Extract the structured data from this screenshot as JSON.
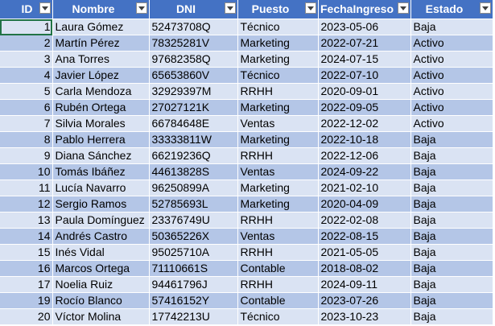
{
  "sheet": {
    "headers": [
      "ID",
      "Nombre",
      "DNI",
      "Puesto",
      "FechaIngreso",
      "Estado"
    ],
    "filter_icon": "dropdown-arrow-icon",
    "header_color": "#4472c4",
    "band_light": "#dae3f3",
    "band_dark": "#b4c6e7",
    "rows": [
      [
        "1",
        "Laura Gómez",
        "52473708Q",
        "Técnico",
        "2023-05-06",
        "Baja"
      ],
      [
        "2",
        "Martín Pérez",
        "78325281V",
        "Marketing",
        "2022-07-21",
        "Activo"
      ],
      [
        "3",
        "Ana Torres",
        "97682358Q",
        "Marketing",
        "2024-07-15",
        "Activo"
      ],
      [
        "4",
        "Javier López",
        "65653860V",
        "Técnico",
        "2022-07-10",
        "Activo"
      ],
      [
        "5",
        "Carla Mendoza",
        "32929397M",
        "RRHH",
        "2020-09-01",
        "Activo"
      ],
      [
        "6",
        "Rubén Ortega",
        "27027121K",
        "Marketing",
        "2022-09-05",
        "Activo"
      ],
      [
        "7",
        "Silvia Morales",
        "66784648E",
        "Ventas",
        "2022-12-02",
        "Activo"
      ],
      [
        "8",
        "Pablo Herrera",
        "33333811W",
        "Marketing",
        "2022-10-18",
        "Baja"
      ],
      [
        "9",
        "Diana Sánchez",
        "66219236Q",
        "RRHH",
        "2022-12-06",
        "Baja"
      ],
      [
        "10",
        "Tomás Ibáñez",
        "44613828S",
        "Ventas",
        "2024-09-22",
        "Baja"
      ],
      [
        "11",
        "Lucía Navarro",
        "96250899A",
        "Marketing",
        "2021-02-10",
        "Baja"
      ],
      [
        "12",
        "Sergio Ramos",
        "52785693L",
        "Marketing",
        "2020-04-09",
        "Baja"
      ],
      [
        "13",
        "Paula Domínguez",
        "23376749U",
        "RRHH",
        "2022-02-08",
        "Baja"
      ],
      [
        "14",
        "Andrés Castro",
        "50365226X",
        "Ventas",
        "2022-08-15",
        "Baja"
      ],
      [
        "15",
        "Inés Vidal",
        "95025710A",
        "RRHH",
        "2021-05-05",
        "Baja"
      ],
      [
        "16",
        "Marcos Ortega",
        "71110661S",
        "Contable",
        "2018-08-02",
        "Baja"
      ],
      [
        "17",
        "Noelia Ruiz",
        "94461796J",
        "RRHH",
        "2024-09-11",
        "Baja"
      ],
      [
        "19",
        "Rocío Blanco",
        "57416152Y",
        "Contable",
        "2023-07-26",
        "Baja"
      ],
      [
        "20",
        "Víctor Molina",
        "17742213U",
        "Técnico",
        "2023-10-23",
        "Baja"
      ]
    ]
  }
}
